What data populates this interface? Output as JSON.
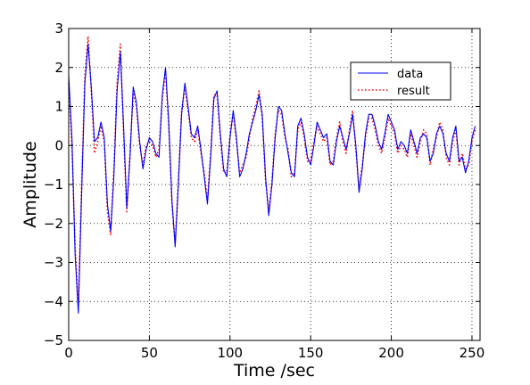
{
  "chart_data": {
    "type": "line",
    "title": "",
    "xlabel": "Time /sec",
    "ylabel": "Amplitude",
    "xlim": [
      0,
      255
    ],
    "ylim": [
      -5,
      3
    ],
    "xticks": [
      0,
      50,
      100,
      150,
      200,
      250
    ],
    "yticks": [
      -5,
      -4,
      -3,
      -2,
      -1,
      0,
      1,
      2,
      3
    ],
    "grid": true,
    "legend_position": "top-right",
    "series": [
      {
        "name": "data",
        "color": "#0000ff",
        "style": "solid",
        "x": [
          0,
          2,
          4,
          6,
          8,
          10,
          12,
          14,
          16,
          18,
          20,
          22,
          24,
          26,
          28,
          30,
          32,
          34,
          36,
          38,
          40,
          42,
          44,
          46,
          48,
          50,
          52,
          54,
          56,
          58,
          60,
          62,
          64,
          66,
          68,
          70,
          72,
          74,
          76,
          78,
          80,
          82,
          84,
          86,
          88,
          90,
          92,
          94,
          96,
          98,
          100,
          102,
          104,
          106,
          108,
          110,
          112,
          114,
          116,
          118,
          120,
          122,
          124,
          126,
          128,
          130,
          132,
          134,
          136,
          138,
          140,
          142,
          144,
          146,
          148,
          150,
          152,
          154,
          156,
          158,
          160,
          162,
          164,
          166,
          168,
          170,
          172,
          174,
          176,
          178,
          180,
          182,
          184,
          186,
          188,
          190,
          192,
          194,
          196,
          198,
          200,
          202,
          204,
          206,
          208,
          210,
          212,
          214,
          216,
          218,
          220,
          222,
          224,
          226,
          228,
          230,
          232,
          234,
          236,
          238,
          240,
          242,
          244,
          246,
          248,
          250,
          252
        ],
        "y": [
          1.8,
          0.2,
          -2.8,
          -4.3,
          -1.2,
          1.6,
          2.6,
          1.5,
          0.1,
          0.2,
          0.6,
          0.2,
          -1.5,
          -2.2,
          -0.8,
          1.4,
          2.4,
          0.5,
          -1.6,
          -0.3,
          1.5,
          1.1,
          0.1,
          -0.6,
          -0.1,
          0.2,
          0.1,
          -0.2,
          -0.3,
          1.3,
          2.0,
          0.6,
          -1.4,
          -2.6,
          -1.0,
          0.8,
          1.6,
          1.0,
          0.3,
          0.2,
          0.5,
          -0.1,
          -0.8,
          -1.5,
          -0.3,
          1.2,
          1.4,
          0.3,
          -0.6,
          -0.8,
          0.2,
          0.9,
          0.2,
          -0.8,
          -0.6,
          -0.2,
          0.3,
          0.6,
          0.9,
          1.3,
          0.8,
          -0.8,
          -1.8,
          -1.0,
          0.2,
          1.0,
          0.9,
          0.3,
          -0.2,
          -0.7,
          -0.8,
          0.5,
          0.7,
          0.3,
          -0.3,
          -0.5,
          0.0,
          0.6,
          0.4,
          0.2,
          0.3,
          -0.4,
          -0.5,
          0.1,
          0.5,
          0.2,
          -0.1,
          0.3,
          0.8,
          0.0,
          -1.2,
          -0.6,
          0.3,
          0.8,
          0.8,
          0.5,
          0.1,
          -0.1,
          0.3,
          0.8,
          0.6,
          0.4,
          -0.1,
          0.1,
          0.0,
          -0.2,
          0.4,
          0.1,
          -0.2,
          0.2,
          0.3,
          0.2,
          -0.4,
          -0.2,
          0.3,
          0.5,
          0.3,
          -0.2,
          -0.4,
          0.2,
          0.5,
          -0.4,
          -0.3,
          -0.7,
          -0.4,
          0.2,
          0.5
        ]
      },
      {
        "name": "result",
        "color": "#ff0000",
        "style": "dotted",
        "x": [
          0,
          2,
          4,
          6,
          8,
          10,
          12,
          14,
          16,
          18,
          20,
          22,
          24,
          26,
          28,
          30,
          32,
          34,
          36,
          38,
          40,
          42,
          44,
          46,
          48,
          50,
          52,
          54,
          56,
          58,
          60,
          62,
          64,
          66,
          68,
          70,
          72,
          74,
          76,
          78,
          80,
          82,
          84,
          86,
          88,
          90,
          92,
          94,
          96,
          98,
          100,
          102,
          104,
          106,
          108,
          110,
          112,
          114,
          116,
          118,
          120,
          122,
          124,
          126,
          128,
          130,
          132,
          134,
          136,
          138,
          140,
          142,
          144,
          146,
          148,
          150,
          152,
          154,
          156,
          158,
          160,
          162,
          164,
          166,
          168,
          170,
          172,
          174,
          176,
          178,
          180,
          182,
          184,
          186,
          188,
          190,
          192,
          194,
          196,
          198,
          200,
          202,
          204,
          206,
          208,
          210,
          212,
          214,
          216,
          218,
          220,
          222,
          224,
          226,
          228,
          230,
          232,
          234,
          236,
          238,
          240,
          242,
          244,
          246,
          248,
          250,
          252
        ],
        "y": [
          1.6,
          0.0,
          -2.6,
          -4.1,
          -1.0,
          1.8,
          2.8,
          1.4,
          -0.2,
          0.1,
          0.5,
          0.1,
          -1.7,
          -2.3,
          -0.6,
          1.6,
          2.6,
          0.3,
          -1.7,
          -0.2,
          1.4,
          1.0,
          0.0,
          -0.5,
          0.0,
          0.1,
          0.0,
          -0.3,
          -0.1,
          1.2,
          1.9,
          0.5,
          -1.5,
          -2.5,
          -0.9,
          0.9,
          1.5,
          0.9,
          0.2,
          0.1,
          0.4,
          -0.2,
          -0.7,
          -1.4,
          -0.2,
          1.3,
          1.3,
          0.2,
          -0.7,
          -0.7,
          0.3,
          0.8,
          0.1,
          -0.7,
          -0.5,
          -0.3,
          0.2,
          0.7,
          1.0,
          1.4,
          0.7,
          -0.9,
          -1.7,
          -0.9,
          0.3,
          0.9,
          0.8,
          0.2,
          -0.1,
          -0.8,
          -0.7,
          0.4,
          0.6,
          0.2,
          -0.4,
          -0.4,
          0.1,
          0.5,
          0.3,
          0.1,
          0.2,
          -0.5,
          -0.4,
          0.2,
          0.6,
          0.1,
          -0.2,
          0.4,
          0.9,
          -0.1,
          -1.1,
          -0.5,
          0.2,
          0.7,
          0.7,
          0.4,
          0.0,
          -0.2,
          0.2,
          0.7,
          0.5,
          0.3,
          -0.2,
          0.0,
          -0.1,
          -0.3,
          0.3,
          0.0,
          -0.3,
          0.1,
          0.4,
          0.3,
          -0.5,
          -0.1,
          0.2,
          0.6,
          0.4,
          -0.3,
          -0.5,
          0.1,
          0.4,
          -0.5,
          -0.2,
          -0.6,
          -0.5,
          0.1,
          0.4
        ]
      }
    ]
  }
}
